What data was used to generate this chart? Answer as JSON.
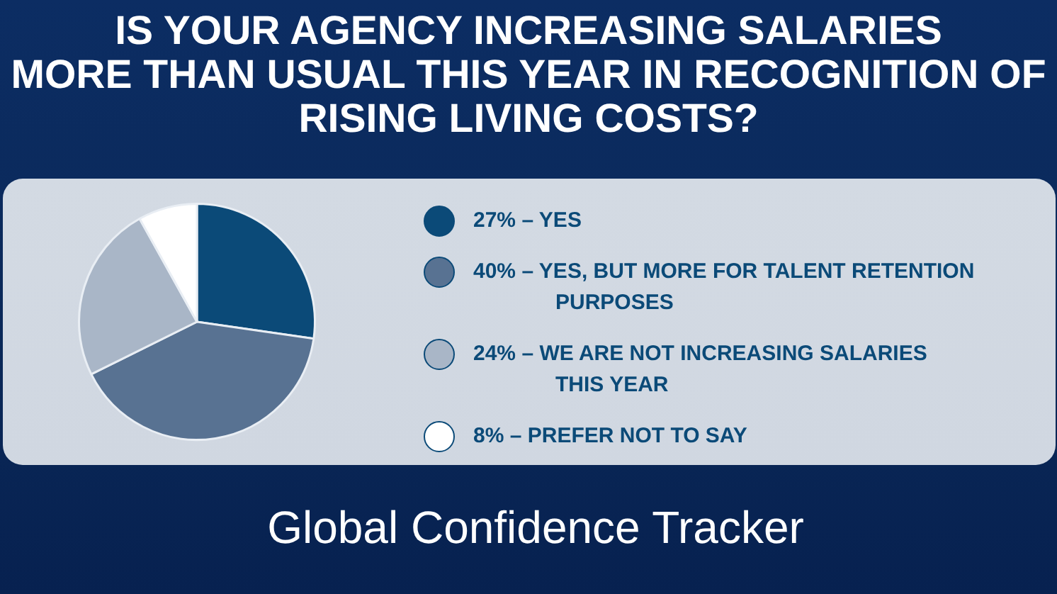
{
  "chart_data": {
    "type": "pie",
    "title": "IS YOUR AGENCY INCREASING SALARIES\nMORE THAN USUAL THIS YEAR IN RECOGNITION OF\nRISING LIVING COSTS?",
    "categories": [
      "27% – YES",
      "40% – YES, BUT MORE FOR TALENT RETENTION PURPOSES",
      "24% – WE ARE NOT INCREASING SALARIES THIS YEAR",
      "8% – PREFER NOT TO SAY"
    ],
    "values": [
      27,
      40,
      24,
      8
    ],
    "colors": [
      "#0b4a78",
      "#587292",
      "#a9b6c7",
      "#ffffff"
    ],
    "legend": "right",
    "annotations": [
      "Global Confidence Tracker"
    ]
  }
}
